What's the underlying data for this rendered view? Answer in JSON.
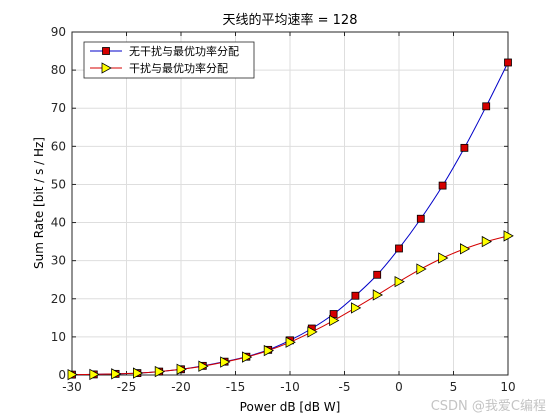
{
  "chart_data": {
    "type": "line",
    "title": "天线的平均速率 = 128",
    "xlabel": "Power dB [dB W]",
    "ylabel": "Sum Rate [bit / s / Hz]",
    "xlim": [
      -30,
      10
    ],
    "ylim": [
      0,
      90
    ],
    "xticks": [
      -30,
      -25,
      -20,
      -15,
      -10,
      -5,
      0,
      5,
      10
    ],
    "yticks": [
      0,
      10,
      20,
      30,
      40,
      50,
      60,
      70,
      80,
      90
    ],
    "grid": true,
    "legend_position": "top-left",
    "x": [
      -30,
      -28,
      -26,
      -24,
      -22,
      -20,
      -18,
      -16,
      -14,
      -12,
      -10,
      -8,
      -6,
      -4,
      -2,
      0,
      2,
      4,
      6,
      8,
      10
    ],
    "series": [
      {
        "name": "无干扰与最优功率分配",
        "color": "#0000c8",
        "marker": "square",
        "marker_fill": "#d40000",
        "values": [
          0.1,
          0.15,
          0.3,
          0.5,
          0.9,
          1.5,
          2.4,
          3.5,
          4.8,
          6.6,
          9.1,
          12.2,
          16.0,
          20.8,
          26.3,
          33.2,
          41.0,
          49.7,
          59.6,
          70.5,
          82.0
        ]
      },
      {
        "name": "干扰与最优功率分配",
        "color": "#d40000",
        "marker": "triangle-right",
        "marker_fill": "#ffff00",
        "values": [
          0.1,
          0.15,
          0.3,
          0.5,
          0.9,
          1.5,
          2.3,
          3.4,
          4.7,
          6.4,
          8.6,
          11.3,
          14.3,
          17.6,
          21.0,
          24.5,
          27.8,
          30.7,
          33.1,
          35.0,
          36.5
        ]
      }
    ]
  },
  "watermark": "CSDN @我爱C编程"
}
